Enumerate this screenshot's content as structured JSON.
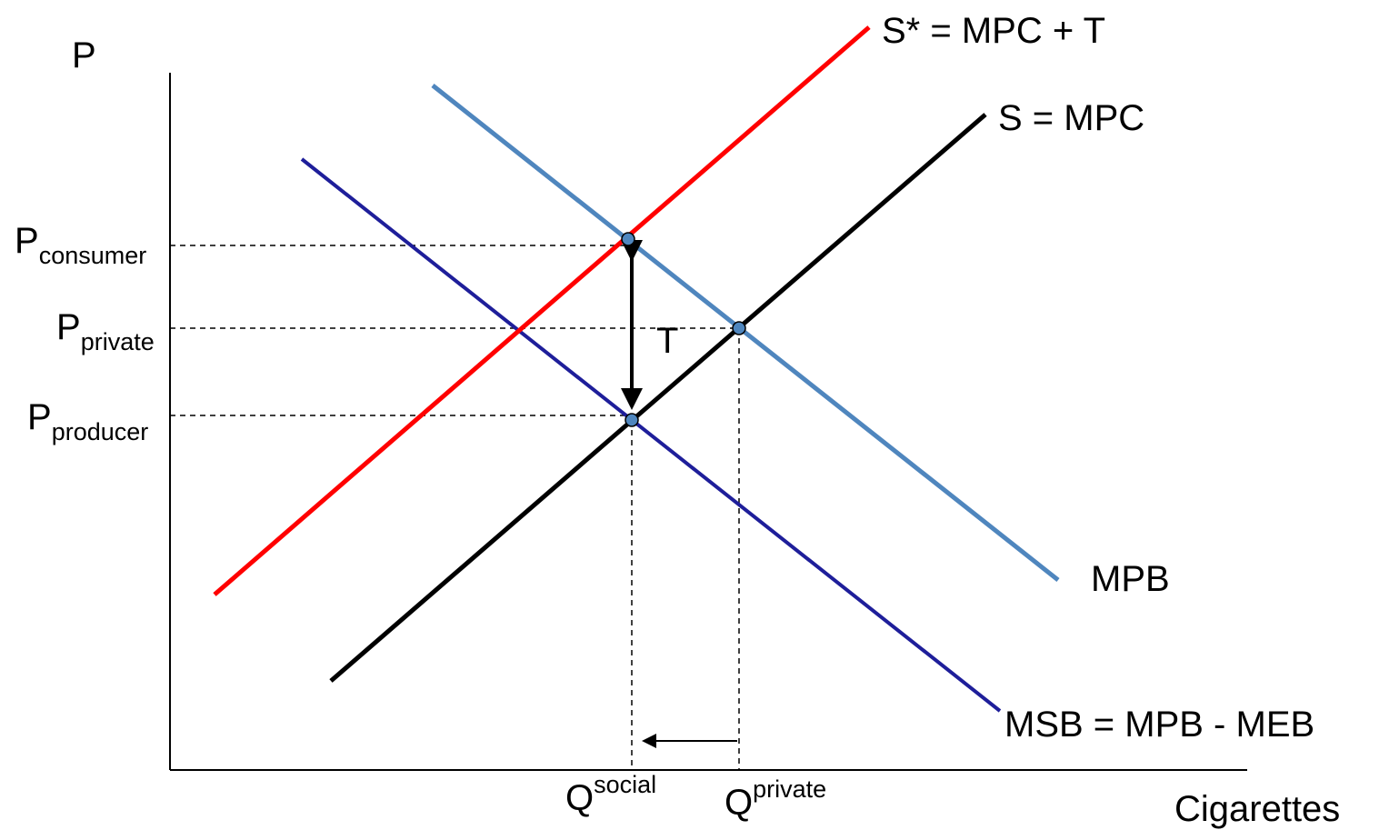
{
  "axes": {
    "y_label": "P",
    "x_label": "Cigarettes"
  },
  "curves": {
    "s_star": {
      "label": "S* = MPC + T",
      "color": "#ff0000"
    },
    "s": {
      "label": "S = MPC",
      "color": "#000000"
    },
    "mpb": {
      "label": "MPB",
      "color": "#4f86be"
    },
    "msb": {
      "label": "MSB = MPB - MEB",
      "color": "#1e1e9a"
    }
  },
  "prices": {
    "consumer": {
      "main": "P",
      "sub": "consumer"
    },
    "private": {
      "main": "P",
      "sub": "private"
    },
    "producer": {
      "main": "P",
      "sub": "producer"
    }
  },
  "quantities": {
    "social": {
      "main": "Q",
      "sup": "social"
    },
    "private": {
      "main": "Q",
      "sup": "private"
    }
  },
  "tax_label": "T",
  "point_color": "#4f86be"
}
